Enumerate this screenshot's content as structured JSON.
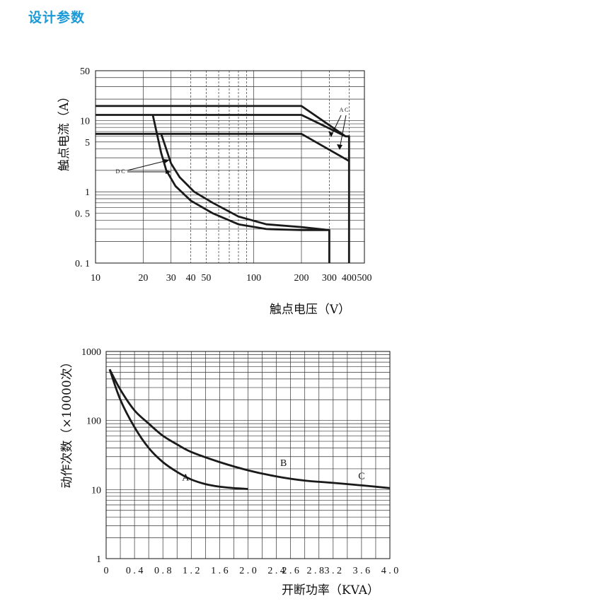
{
  "page": {
    "title": "设计参数",
    "accent": "#1a9ad8"
  },
  "chart_data": [
    {
      "type": "line",
      "xscale": "log",
      "yscale": "log",
      "xlabel": "触点电压（V）",
      "ylabel": "触点电流（A）",
      "xlim": [
        10,
        500
      ],
      "ylim": [
        0.1,
        50
      ],
      "x_ticks": [
        10,
        20,
        30,
        40,
        50,
        100,
        200,
        300,
        400,
        500
      ],
      "y_ticks": [
        0.1,
        0.5,
        1,
        5,
        10,
        50
      ],
      "grid": true,
      "series": [
        {
          "name": "A C",
          "points": [
            [
              10,
              16
            ],
            [
              200,
              16
            ],
            [
              380,
              6
            ],
            [
              400,
              6
            ],
            [
              400,
              0.1
            ]
          ]
        },
        {
          "name": "A C",
          "points": [
            [
              10,
              12
            ],
            [
              200,
              12
            ],
            [
              380,
              6
            ]
          ]
        },
        {
          "name": "A C",
          "points": [
            [
              10,
              6.5
            ],
            [
              200,
              6.5
            ],
            [
              400,
              2.7
            ]
          ]
        },
        {
          "name": "D C",
          "points": [
            [
              23,
              12
            ],
            [
              26,
              3.5
            ],
            [
              28,
              2
            ],
            [
              32,
              1.2
            ],
            [
              40,
              0.75
            ],
            [
              55,
              0.5
            ],
            [
              80,
              0.35
            ],
            [
              120,
              0.3
            ],
            [
              200,
              0.29
            ],
            [
              300,
              0.29
            ],
            [
              300,
              0.1
            ]
          ]
        },
        {
          "name": "D C",
          "points": [
            [
              26,
              6.5
            ],
            [
              30,
              2.5
            ],
            [
              34,
              1.6
            ],
            [
              42,
              1
            ],
            [
              55,
              0.7
            ],
            [
              80,
              0.45
            ],
            [
              120,
              0.35
            ],
            [
              200,
              0.32
            ],
            [
              300,
              0.29
            ]
          ]
        }
      ],
      "annotations": [
        "A C",
        "D C"
      ]
    },
    {
      "type": "line",
      "yscale": "log",
      "xlabel": "开断功率（KVA）",
      "ylabel": "动作次数（×10000次）",
      "xlim": [
        0,
        4.0
      ],
      "ylim": [
        1,
        1000
      ],
      "x_ticks": [
        "0",
        "0.4",
        "0.8",
        "1.2",
        "1.6",
        "2.0",
        "2.4",
        "2.6",
        "2.8",
        "3.2",
        "3.6",
        "4.0"
      ],
      "y_ticks": [
        1,
        10,
        100,
        1000
      ],
      "grid": true,
      "series": [
        {
          "name": "A",
          "points": [
            [
              0.05,
              550
            ],
            [
              0.2,
              200
            ],
            [
              0.4,
              80
            ],
            [
              0.6,
              40
            ],
            [
              0.8,
              25
            ],
            [
              1.0,
              18
            ],
            [
              1.2,
              14
            ],
            [
              1.4,
              12
            ],
            [
              1.6,
              11
            ],
            [
              1.8,
              10.5
            ],
            [
              2.0,
              10.2
            ]
          ]
        },
        {
          "name": "B",
          "points": [
            [
              0.05,
              550
            ],
            [
              0.2,
              280
            ],
            [
              0.4,
              140
            ],
            [
              0.6,
              90
            ],
            [
              0.8,
              60
            ],
            [
              1.0,
              45
            ],
            [
              1.2,
              35
            ],
            [
              1.6,
              25
            ],
            [
              2.0,
              19
            ],
            [
              2.4,
              15.5
            ],
            [
              2.8,
              13.5
            ],
            [
              3.2,
              12.5
            ],
            [
              3.6,
              11.5
            ],
            [
              4.0,
              10.5
            ]
          ]
        }
      ],
      "curve_labels": [
        "A",
        "B",
        "C"
      ]
    }
  ]
}
